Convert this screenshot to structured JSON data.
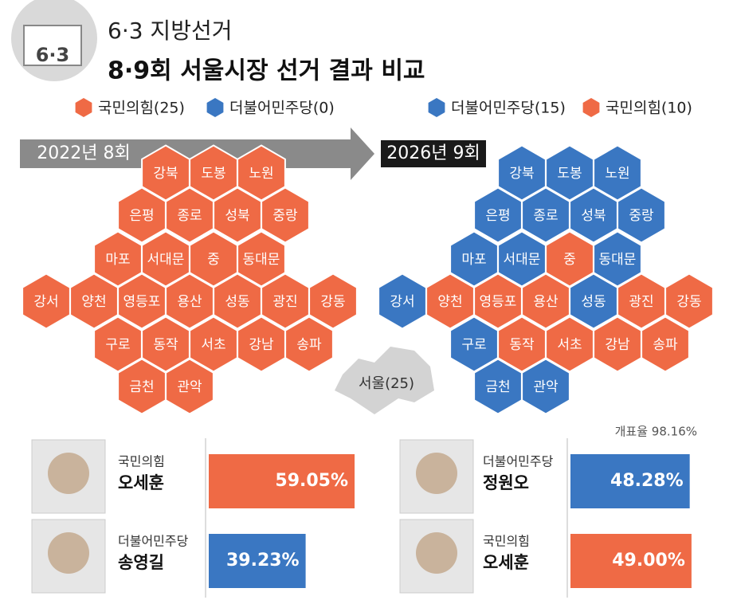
{
  "header": {
    "badge": "6·3",
    "subtitle": "6·3 지방선거",
    "title": "8·9회 서울시장 선거 결과 비교"
  },
  "legend_2022": [
    {
      "label": "국민의힘(25)",
      "color": "#ef6a45"
    },
    {
      "label": "더불어민주당(0)",
      "color": "#3a77c2"
    }
  ],
  "legend_2026": [
    {
      "label": "더불어민주당(15)",
      "color": "#3a77c2"
    },
    {
      "label": "국민의힘(10)",
      "color": "#ef6a45"
    }
  ],
  "period_2022": "2022년 8회",
  "period_2026": "2026년 9회",
  "districts": [
    {
      "name": "강북",
      "color_2022": "#ef6a45",
      "color_2026": "#3a77c2"
    },
    {
      "name": "도봉",
      "color_2022": "#ef6a45",
      "color_2026": "#3a77c2"
    },
    {
      "name": "노원",
      "color_2022": "#ef6a45",
      "color_2026": "#3a77c2"
    },
    {
      "name": "은평",
      "color_2022": "#ef6a45",
      "color_2026": "#3a77c2"
    },
    {
      "name": "종로",
      "color_2022": "#ef6a45",
      "color_2026": "#3a77c2"
    },
    {
      "name": "성북",
      "color_2022": "#ef6a45",
      "color_2026": "#3a77c2"
    },
    {
      "name": "중랑",
      "color_2022": "#ef6a45",
      "color_2026": "#3a77c2"
    },
    {
      "name": "마포",
      "color_2022": "#ef6a45",
      "color_2026": "#3a77c2"
    },
    {
      "name": "서대문",
      "color_2022": "#ef6a45",
      "color_2026": "#3a77c2"
    },
    {
      "name": "중",
      "color_2022": "#ef6a45",
      "color_2026": "#ef6a45"
    },
    {
      "name": "동대문",
      "color_2022": "#ef6a45",
      "color_2026": "#3a77c2"
    },
    {
      "name": "강서",
      "color_2022": "#ef6a45",
      "color_2026": "#3a77c2"
    },
    {
      "name": "양천",
      "color_2022": "#ef6a45",
      "color_2026": "#ef6a45"
    },
    {
      "name": "영등포",
      "color_2022": "#ef6a45",
      "color_2026": "#ef6a45"
    },
    {
      "name": "용산",
      "color_2022": "#ef6a45",
      "color_2026": "#ef6a45"
    },
    {
      "name": "성동",
      "color_2022": "#ef6a45",
      "color_2026": "#3a77c2"
    },
    {
      "name": "광진",
      "color_2022": "#ef6a45",
      "color_2026": "#ef6a45"
    },
    {
      "name": "강동",
      "color_2022": "#ef6a45",
      "color_2026": "#ef6a45"
    },
    {
      "name": "구로",
      "color_2022": "#ef6a45",
      "color_2026": "#3a77c2"
    },
    {
      "name": "동작",
      "color_2022": "#ef6a45",
      "color_2026": "#ef6a45"
    },
    {
      "name": "서초",
      "color_2022": "#ef6a45",
      "color_2026": "#ef6a45"
    },
    {
      "name": "강남",
      "color_2022": "#ef6a45",
      "color_2026": "#ef6a45"
    },
    {
      "name": "송파",
      "color_2022": "#ef6a45",
      "color_2026": "#ef6a45"
    },
    {
      "name": "금천",
      "color_2022": "#ef6a45",
      "color_2026": "#3a77c2"
    },
    {
      "name": "관악",
      "color_2022": "#ef6a45",
      "color_2026": "#3a77c2"
    }
  ],
  "seoul_label": "서울(25)",
  "turnout": "개표율 98.16%",
  "results_2022": [
    {
      "party": "국민의힘",
      "name": "오세훈",
      "value": 59.05,
      "label": "59.05%",
      "color": "#ef6a45"
    },
    {
      "party": "더불어민주당",
      "name": "송영길",
      "value": 39.23,
      "label": "39.23%",
      "color": "#3a77c2"
    }
  ],
  "results_2026": [
    {
      "party": "더불어민주당",
      "name": "정원오",
      "value": 48.28,
      "label": "48.28%",
      "color": "#3a77c2"
    },
    {
      "party": "국민의힘",
      "name": "오세훈",
      "value": 49.0,
      "label": "49.00%",
      "color": "#ef6a45"
    }
  ]
}
